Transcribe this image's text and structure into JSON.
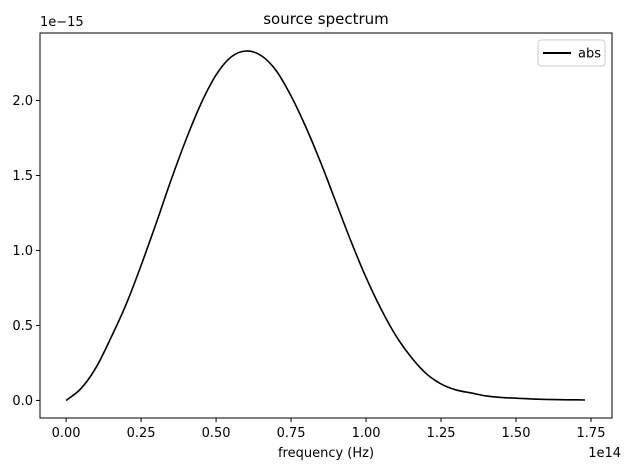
{
  "chart_data": {
    "type": "line",
    "title": "source spectrum",
    "xlabel": "frequency (Hz)",
    "ylabel": "",
    "x_scale_label": "1e14",
    "y_scale_label": "1e−15",
    "xlim": [
      -0.087,
      1.82
    ],
    "ylim": [
      -0.117,
      2.45
    ],
    "x_ticks": [
      0.0,
      0.25,
      0.5,
      0.75,
      1.0,
      1.25,
      1.5,
      1.75
    ],
    "x_tick_labels": [
      "0.00",
      "0.25",
      "0.50",
      "0.75",
      "1.00",
      "1.25",
      "1.50",
      "1.75"
    ],
    "y_ticks": [
      0.0,
      0.5,
      1.0,
      1.5,
      2.0
    ],
    "y_tick_labels": [
      "0.0",
      "0.5",
      "1.0",
      "1.5",
      "2.0"
    ],
    "grid": false,
    "legend": {
      "position": "top-right",
      "entries": [
        "abs"
      ]
    },
    "series": [
      {
        "name": "abs",
        "color": "#000000",
        "x": [
          0.0,
          0.05,
          0.1,
          0.15,
          0.2,
          0.25,
          0.3,
          0.35,
          0.4,
          0.45,
          0.5,
          0.55,
          0.6,
          0.65,
          0.7,
          0.75,
          0.8,
          0.85,
          0.9,
          0.95,
          1.0,
          1.05,
          1.1,
          1.15,
          1.2,
          1.25,
          1.3,
          1.35,
          1.4,
          1.45,
          1.5,
          1.55,
          1.6,
          1.65,
          1.7,
          1.73
        ],
        "y": [
          0.0,
          0.08,
          0.22,
          0.42,
          0.64,
          0.9,
          1.18,
          1.47,
          1.74,
          1.98,
          2.17,
          2.29,
          2.33,
          2.3,
          2.2,
          2.03,
          1.82,
          1.58,
          1.32,
          1.06,
          0.82,
          0.61,
          0.43,
          0.29,
          0.18,
          0.11,
          0.07,
          0.05,
          0.03,
          0.02,
          0.015,
          0.01,
          0.007,
          0.005,
          0.004,
          0.003
        ]
      }
    ]
  }
}
